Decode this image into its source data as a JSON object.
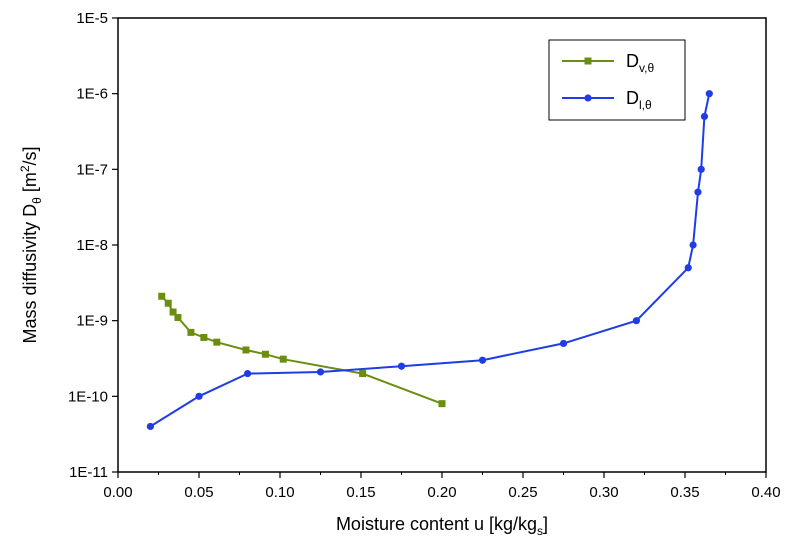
{
  "chart_data": {
    "type": "line",
    "x_axis": {
      "label": {
        "main": "Moisture content u [kg/kg",
        "sub": "s",
        "close": "]"
      },
      "range": [
        0.0,
        0.4
      ],
      "ticks": [
        0.0,
        0.05,
        0.1,
        0.15,
        0.2,
        0.25,
        0.3,
        0.35,
        0.4
      ],
      "tick_labels": [
        "0.00",
        "0.05",
        "0.10",
        "0.15",
        "0.20",
        "0.25",
        "0.30",
        "0.35",
        "0.40"
      ]
    },
    "y_axis": {
      "label": {
        "main": "Mass diffusivity D",
        "sub": "θ",
        "mid": " [m",
        "sup": "2",
        "end": "/s]"
      },
      "scale": "log",
      "range": [
        1e-11,
        1e-05
      ],
      "ticks": [
        1e-11,
        1e-10,
        1e-09,
        1e-08,
        1e-07,
        1e-06,
        1e-05
      ],
      "tick_labels": [
        "1E-11",
        "1E-10",
        "1E-9",
        "1E-8",
        "1E-7",
        "1E-6",
        "1E-5"
      ]
    },
    "grid": false,
    "legend_position": "top-right",
    "series": [
      {
        "name": {
          "main": "D",
          "sub": "v,θ"
        },
        "color": "#6b8e10",
        "marker": "square",
        "x": [
          0.027,
          0.031,
          0.034,
          0.037,
          0.045,
          0.053,
          0.061,
          0.079,
          0.091,
          0.102,
          0.151,
          0.2
        ],
        "y": [
          2.1e-09,
          1.7e-09,
          1.3e-09,
          1.1e-09,
          7e-10,
          6e-10,
          5.2e-10,
          4.1e-10,
          3.6e-10,
          3.1e-10,
          2e-10,
          8e-11
        ]
      },
      {
        "name": {
          "main": "D",
          "sub": "l,θ"
        },
        "color": "#1f3de6",
        "marker": "circle",
        "x": [
          0.02,
          0.05,
          0.08,
          0.125,
          0.175,
          0.225,
          0.275,
          0.32,
          0.352,
          0.355,
          0.358,
          0.36,
          0.362,
          0.365
        ],
        "y": [
          4e-11,
          1e-10,
          2e-10,
          2.1e-10,
          2.5e-10,
          3e-10,
          5e-10,
          1e-09,
          5e-09,
          1e-08,
          5e-08,
          1e-07,
          5e-07,
          1e-06
        ]
      }
    ]
  }
}
